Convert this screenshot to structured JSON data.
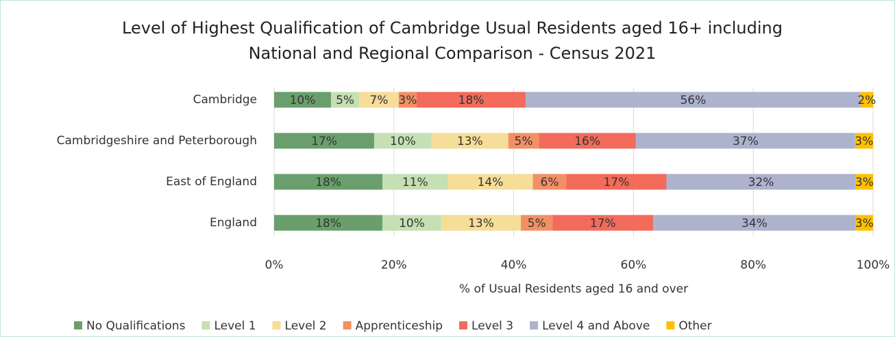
{
  "chart_data": {
    "type": "stacked_bar_horizontal",
    "title": [
      "Level of Highest Qualification of Cambridge Usual Residents aged 16+ including",
      "National and Regional Comparison - Census 2021"
    ],
    "x_label": "% of Usual Residents aged 16 and over",
    "categories": [
      "Cambridge",
      "Cambridgeshire and Peterborough",
      "East of England",
      "England"
    ],
    "xlim": [
      0,
      100
    ],
    "xticks": [
      {
        "value": 0,
        "label": "0%"
      },
      {
        "value": 20,
        "label": "20%"
      },
      {
        "value": 40,
        "label": "40%"
      },
      {
        "value": 60,
        "label": "60%"
      },
      {
        "value": 80,
        "label": "80%"
      },
      {
        "value": 100,
        "label": "100%"
      }
    ],
    "grid": true,
    "legend": "bottom",
    "series": [
      {
        "name": "No Qualifications",
        "color": "#6a9f6d",
        "values": [
          9.5,
          16.7,
          18.1,
          18.1
        ],
        "value_labels": [
          "10%",
          "17%",
          "18%",
          "18%"
        ]
      },
      {
        "name": "Level 1",
        "color": "#c5e0b4",
        "values": [
          4.7,
          9.6,
          10.9,
          9.8
        ],
        "value_labels": [
          "5%",
          "10%",
          "11%",
          "10%"
        ]
      },
      {
        "name": "Level 2",
        "color": "#f6dd98",
        "values": [
          6.6,
          12.8,
          14.2,
          13.3
        ],
        "value_labels": [
          "7%",
          "13%",
          "14%",
          "13%"
        ]
      },
      {
        "name": "Apprenticeship",
        "color": "#f29065",
        "values": [
          3.0,
          5.1,
          5.6,
          5.3
        ],
        "value_labels": [
          "3%",
          "5%",
          "6%",
          "5%"
        ]
      },
      {
        "name": "Level 3",
        "color": "#f26b5b",
        "values": [
          18.2,
          16.2,
          16.7,
          16.8
        ],
        "value_labels": [
          "18%",
          "16%",
          "17%",
          "17%"
        ]
      },
      {
        "name": "Level 4 and Above",
        "color": "#adb3cd",
        "values": [
          55.9,
          36.6,
          31.6,
          33.8
        ],
        "value_labels": [
          "56%",
          "37%",
          "32%",
          "34%"
        ]
      },
      {
        "name": "Other",
        "color": "#ffc000",
        "values": [
          2.1,
          3.0,
          2.9,
          2.9
        ],
        "value_labels": [
          "2%",
          "3%",
          "3%",
          "3%"
        ]
      }
    ]
  }
}
